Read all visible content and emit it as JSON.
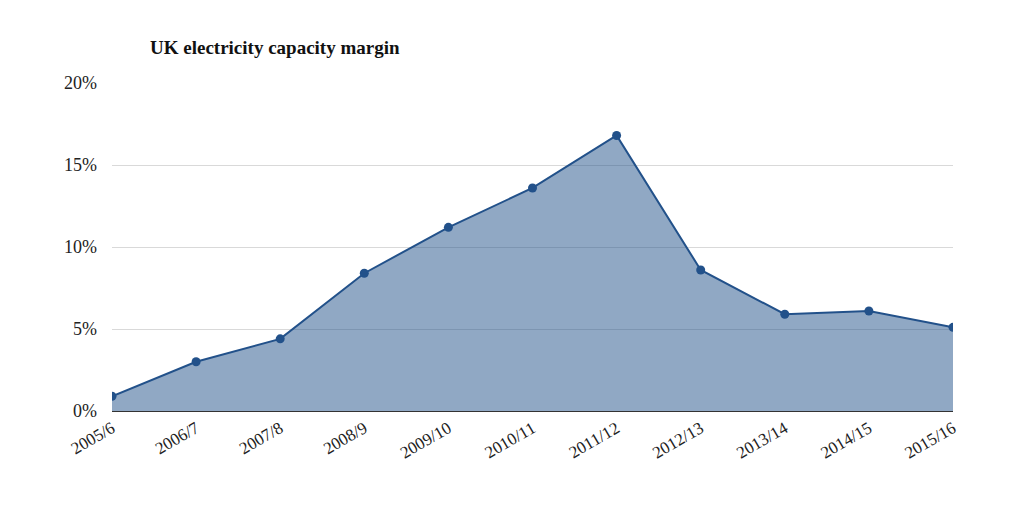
{
  "chart_data": {
    "type": "area",
    "title": "UK electricity capacity margin",
    "categories": [
      "2005/6",
      "2006/7",
      "2007/8",
      "2008/9",
      "2009/10",
      "2010/11",
      "2011/12",
      "2012/13",
      "2013/14",
      "2014/15",
      "2015/16"
    ],
    "values": [
      0.9,
      3.0,
      4.4,
      8.4,
      11.2,
      13.6,
      16.8,
      8.6,
      5.9,
      6.1,
      5.1
    ],
    "color": "#22518a",
    "marker": "circle",
    "ylim": [
      0,
      20
    ],
    "yticks": [
      {
        "value": 0,
        "label": "0%"
      },
      {
        "value": 5,
        "label": "5%"
      },
      {
        "value": 10,
        "label": "10%"
      },
      {
        "value": 15,
        "label": "15%"
      },
      {
        "value": 20,
        "label": "20%"
      }
    ],
    "grid": true
  }
}
